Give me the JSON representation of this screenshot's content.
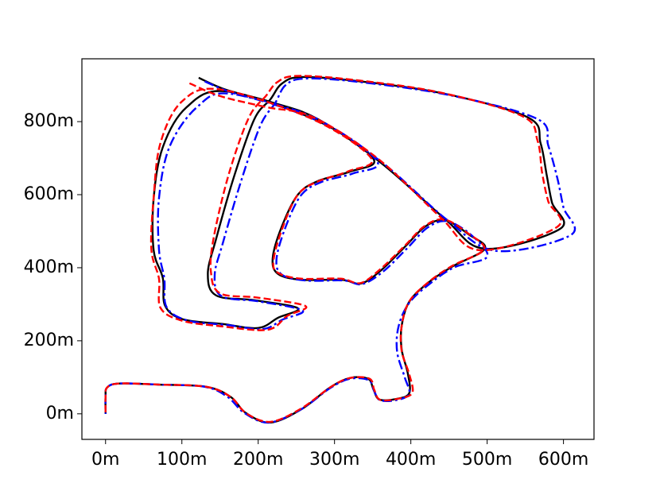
{
  "chart_data": {
    "type": "line",
    "xlim": [
      -31,
      640
    ],
    "ylim": [
      -70,
      972
    ],
    "xticks": [
      {
        "value": 0,
        "label": "0m"
      },
      {
        "value": 100,
        "label": "100m"
      },
      {
        "value": 200,
        "label": "200m"
      },
      {
        "value": 300,
        "label": "300m"
      },
      {
        "value": 400,
        "label": "400m"
      },
      {
        "value": 500,
        "label": "500m"
      },
      {
        "value": 600,
        "label": "600m"
      }
    ],
    "yticks": [
      {
        "value": 0,
        "label": "0m"
      },
      {
        "value": 200,
        "label": "200m"
      },
      {
        "value": 400,
        "label": "400m"
      },
      {
        "value": 600,
        "label": "600m"
      },
      {
        "value": 800,
        "label": "800m"
      }
    ],
    "grid": false,
    "series": [
      {
        "color": "#000000",
        "dash": "solid",
        "x": [
          122,
          158,
          216,
          278,
          361,
          444,
          497,
          596,
          585,
          578,
          570,
          554,
          445,
          330,
          257,
          231,
          216,
          195,
          169,
          145,
          134,
          145,
          195,
          252,
          226,
          200,
          153,
          101,
          78,
          75,
          63,
          63,
          75,
          106,
          158,
          278,
          351,
          320,
          278,
          252,
          231,
          219,
          226,
          257,
          309,
          335,
          361,
          393,
          419,
          445,
          476,
          497,
          455,
          424,
          398,
          388,
          388,
          396,
          398,
          382,
          359,
          351,
          344,
          320,
          294,
          257,
          216,
          184,
          164,
          132,
          70,
          18,
          2,
          0,
          0
        ],
        "values": [
          920,
          887,
          854,
          807,
          687,
          535,
          452,
          507,
          578,
          654,
          741,
          811,
          876,
          911,
          922,
          904,
          861,
          807,
          654,
          480,
          383,
          324,
          311,
          289,
          263,
          235,
          246,
          259,
          296,
          372,
          448,
          589,
          730,
          839,
          883,
          802,
          698,
          663,
          637,
          600,
          513,
          426,
          383,
          367,
          367,
          357,
          393,
          459,
          513,
          530,
          491,
          452,
          404,
          361,
          307,
          241,
          176,
          111,
          57,
          41,
          39,
          67,
          96,
          98,
          72,
          13,
          -24,
          2,
          46,
          74,
          80,
          83,
          72,
          46,
          0
        ]
      },
      {
        "color": "#0000ff",
        "dash": "dashdot",
        "x": [
          130,
          165,
          222,
          284,
          366,
          448,
          512,
          610,
          600,
          592,
          580,
          566,
          452,
          335,
          262,
          236,
          222,
          203,
          178,
          154,
          143,
          152,
          200,
          258,
          232,
          206,
          160,
          108,
          80,
          77,
          70,
          70,
          84,
          120,
          165,
          284,
          356,
          324,
          282,
          256,
          236,
          224,
          231,
          262,
          312,
          336,
          364,
          396,
          422,
          448,
          480,
          500,
          458,
          426,
          398,
          384,
          382,
          392,
          398,
          382,
          360,
          352,
          345,
          320,
          294,
          256,
          214,
          182,
          160,
          130,
          70,
          18,
          2,
          0,
          0
        ],
        "values": [
          910,
          880,
          848,
          800,
          682,
          530,
          446,
          490,
          565,
          645,
          735,
          807,
          872,
          908,
          918,
          900,
          850,
          790,
          640,
          470,
          380,
          322,
          308,
          283,
          258,
          232,
          243,
          255,
          292,
          370,
          450,
          590,
          732,
          840,
          876,
          797,
          691,
          658,
          634,
          598,
          512,
          424,
          381,
          365,
          365,
          355,
          390,
          455,
          510,
          527,
          488,
          430,
          402,
          358,
          304,
          240,
          170,
          100,
          55,
          38,
          37,
          62,
          92,
          96,
          70,
          12,
          -24,
          2,
          46,
          74,
          80,
          83,
          72,
          46,
          0
        ]
      },
      {
        "color": "#ff0000",
        "dash": "dashed",
        "x": [
          110,
          150,
          210,
          272,
          356,
          438,
          490,
          592,
          580,
          572,
          566,
          546,
          438,
          322,
          250,
          225,
          210,
          188,
          162,
          142,
          138,
          150,
          200,
          262,
          238,
          212,
          150,
          100,
          72,
          70,
          60,
          63,
          72,
          100,
          150,
          272,
          348,
          318,
          278,
          252,
          232,
          220,
          226,
          256,
          308,
          334,
          360,
          392,
          418,
          444,
          475,
          496,
          455,
          424,
          398,
          388,
          388,
          398,
          402,
          385,
          360,
          352,
          346,
          320,
          294,
          256,
          216,
          184,
          164,
          132,
          70,
          18,
          2,
          0,
          0
        ],
        "values": [
          905,
          870,
          840,
          812,
          700,
          540,
          448,
          512,
          582,
          660,
          748,
          815,
          880,
          915,
          925,
          908,
          870,
          812,
          660,
          486,
          390,
          330,
          318,
          295,
          268,
          230,
          240,
          255,
          290,
          370,
          450,
          592,
          742,
          855,
          888,
          806,
          700,
          664,
          636,
          600,
          510,
          420,
          386,
          370,
          370,
          358,
          396,
          460,
          514,
          532,
          494,
          450,
          406,
          362,
          308,
          240,
          172,
          108,
          58,
          42,
          38,
          66,
          96,
          98,
          72,
          14,
          -22,
          2,
          46,
          74,
          80,
          83,
          72,
          46,
          0
        ]
      }
    ]
  }
}
